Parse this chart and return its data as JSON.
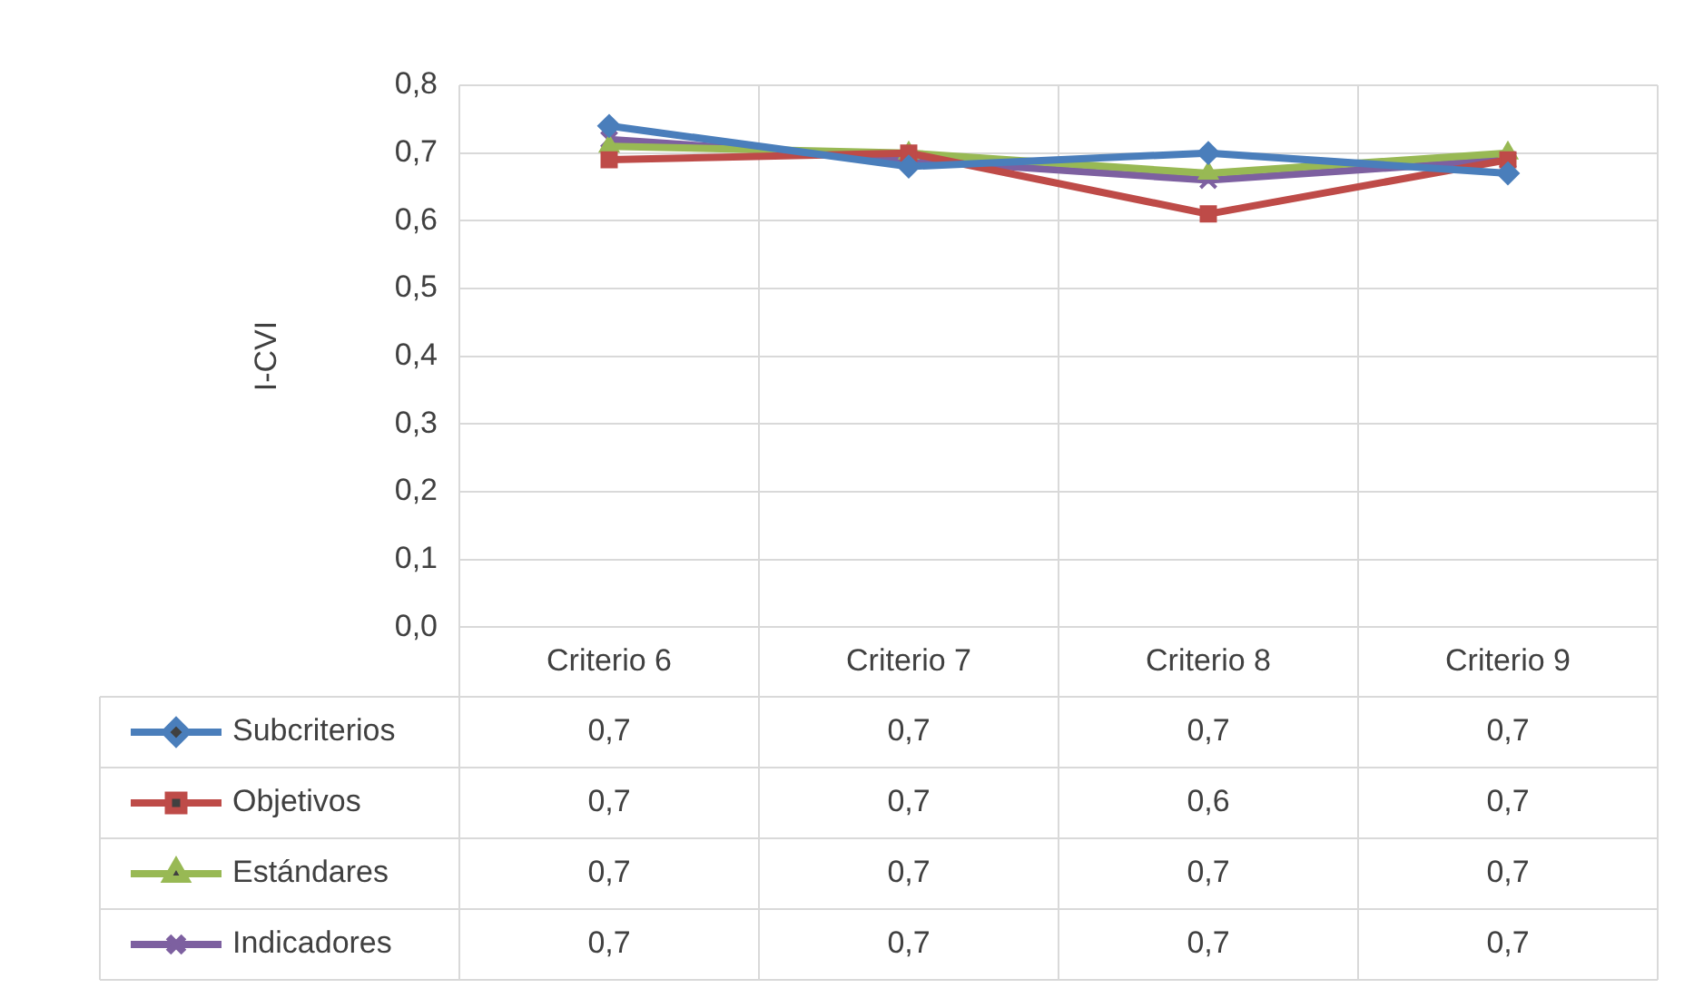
{
  "chart_data": {
    "type": "line",
    "ylabel": "I-CVI",
    "categories": [
      "Criterio 6",
      "Criterio 7",
      "Criterio 8",
      "Criterio 9"
    ],
    "series": [
      {
        "name": "Subcriterios",
        "color": "#4a7ebb",
        "marker": "diamond",
        "values": [
          0.74,
          0.68,
          0.7,
          0.67
        ],
        "value_labels": [
          "0,7",
          "0,7",
          "0,7",
          "0,7"
        ]
      },
      {
        "name": "Objetivos",
        "color": "#be4b48",
        "marker": "square",
        "values": [
          0.69,
          0.7,
          0.61,
          0.69
        ],
        "value_labels": [
          "0,7",
          "0,7",
          "0,6",
          "0,7"
        ]
      },
      {
        "name": "Estándares",
        "color": "#98b954",
        "marker": "triangle",
        "values": [
          0.71,
          0.7,
          0.67,
          0.7
        ],
        "value_labels": [
          "0,7",
          "0,7",
          "0,7",
          "0,7"
        ]
      },
      {
        "name": "Indicadores",
        "color": "#7d60a0",
        "marker": "cross",
        "values": [
          0.72,
          0.69,
          0.66,
          0.69
        ],
        "value_labels": [
          "0,7",
          "0,7",
          "0,7",
          "0,7"
        ]
      }
    ],
    "ylim": [
      0,
      0.8
    ],
    "yticks": [
      {
        "value": 0,
        "label": "0,0"
      },
      {
        "value": 0.1,
        "label": "0,1"
      },
      {
        "value": 0.2,
        "label": "0,2"
      },
      {
        "value": 0.3,
        "label": "0,3"
      },
      {
        "value": 0.4,
        "label": "0,4"
      },
      {
        "value": 0.5,
        "label": "0,5"
      },
      {
        "value": 0.6,
        "label": "0,6"
      },
      {
        "value": 0.7,
        "label": "0,7"
      },
      {
        "value": 0.8,
        "label": "0,8"
      }
    ],
    "grid": true,
    "legend": "bottom left"
  }
}
